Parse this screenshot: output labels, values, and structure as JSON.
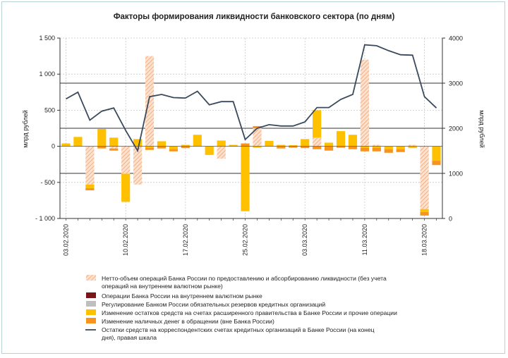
{
  "chart_data": {
    "type": "bar",
    "title": "Факторы формирования ликвидности банковского сектора (по дням)",
    "ylabel_left": "млрд рублей",
    "ylabel_right": "млрд рублей",
    "ylim_left": [
      -1000,
      1500
    ],
    "ylim_right": [
      0,
      4000
    ],
    "yticks_left": [
      "1 500",
      "1 000",
      "500",
      "0",
      "- 500",
      "- 1 000"
    ],
    "yticks_right": [
      "4000",
      "3000",
      "2000",
      "1000",
      "0"
    ],
    "xtick_labels": [
      "03.02.2020",
      "10.02.2020",
      "17.02.2020",
      "25.02.2020",
      "03.03.2020",
      "11.03.2020",
      "18.03.2020"
    ],
    "xtick_label_index": [
      0,
      5,
      10,
      15,
      20,
      25,
      30
    ],
    "dates": [
      "03.02.2020",
      "04.02.2020",
      "05.02.2020",
      "06.02.2020",
      "07.02.2020",
      "10.02.2020",
      "11.02.2020",
      "12.02.2020",
      "13.02.2020",
      "14.02.2020",
      "17.02.2020",
      "18.02.2020",
      "19.02.2020",
      "20.02.2020",
      "21.02.2020",
      "25.02.2020",
      "26.02.2020",
      "27.02.2020",
      "28.02.2020",
      "02.03.2020",
      "03.03.2020",
      "04.03.2020",
      "05.03.2020",
      "06.03.2020",
      "10.03.2020",
      "11.03.2020",
      "12.03.2020",
      "13.03.2020",
      "16.03.2020",
      "17.03.2020",
      "18.03.2020",
      "19.03.2020"
    ],
    "grid_right": [
      1000,
      2000,
      3000
    ],
    "legend_position": "bottom",
    "series": [
      {
        "name": "Нетто-объем операций Банка России по предоставлению и абсорбированию ликвидности (без учета операций на внутреннем валютном рынке)",
        "color": "#f4b183",
        "kind": "hatched-bar",
        "values": [
          0,
          0,
          -530,
          0,
          -30,
          -380,
          -530,
          1250,
          0,
          0,
          0,
          0,
          0,
          -170,
          0,
          0,
          250,
          0,
          0,
          0,
          0,
          120,
          0,
          0,
          0,
          1200,
          20,
          0,
          0,
          20,
          -870,
          0
        ]
      },
      {
        "name": "Операции Банка России на внутреннем валютном рынке",
        "color": "#7b1418",
        "kind": "bar",
        "values": [
          0,
          0,
          0,
          0,
          0,
          0,
          0,
          0,
          0,
          0,
          0,
          0,
          0,
          0,
          0,
          0,
          0,
          0,
          0,
          0,
          0,
          0,
          0,
          0,
          0,
          0,
          0,
          0,
          0,
          0,
          0,
          0
        ]
      },
      {
        "name": "Регулирование Банком России обязательных резервов кредитных организаций",
        "color": "#bfbfbf",
        "kind": "bar",
        "values": [
          0,
          0,
          0,
          0,
          0,
          0,
          0,
          0,
          0,
          0,
          0,
          0,
          0,
          0,
          0,
          0,
          0,
          0,
          0,
          0,
          0,
          0,
          0,
          0,
          0,
          0,
          0,
          0,
          0,
          0,
          0,
          0
        ]
      },
      {
        "name": "Изменение остатков средств на счетах расширенного правительства в Банке России и прочие операции",
        "color": "#ffc000",
        "kind": "bar",
        "values": [
          40,
          130,
          -50,
          240,
          120,
          -390,
          100,
          -20,
          70,
          -40,
          20,
          160,
          -120,
          80,
          20,
          -900,
          -20,
          75,
          20,
          15,
          100,
          380,
          50,
          210,
          160,
          -20,
          -20,
          -40,
          -40,
          -25,
          -40,
          -200
        ]
      },
      {
        "name": "Изменение наличных денег в обращении (вне Банка России)",
        "color": "#f7941d",
        "kind": "bar",
        "values": [
          0,
          0,
          -30,
          -30,
          -30,
          0,
          0,
          -30,
          -30,
          -30,
          -25,
          0,
          0,
          0,
          0,
          40,
          30,
          0,
          -30,
          -20,
          -25,
          -40,
          -60,
          -20,
          -40,
          -50,
          -50,
          -50,
          -40,
          0,
          -50,
          -60
        ]
      },
      {
        "name": "Остатки средств на корреспондентских счетах кредитных организаций в Банке России (на конец дня), правая шкала",
        "color": "#3a4a5c",
        "kind": "line",
        "axis": "right",
        "values": [
          2650,
          2800,
          2180,
          2380,
          2450,
          1950,
          1500,
          2700,
          2750,
          2680,
          2670,
          2820,
          2520,
          2590,
          2590,
          1750,
          2000,
          2080,
          2050,
          2050,
          2140,
          2460,
          2460,
          2640,
          2750,
          3850,
          3830,
          3720,
          3630,
          3620,
          2700,
          2450
        ]
      }
    ]
  }
}
